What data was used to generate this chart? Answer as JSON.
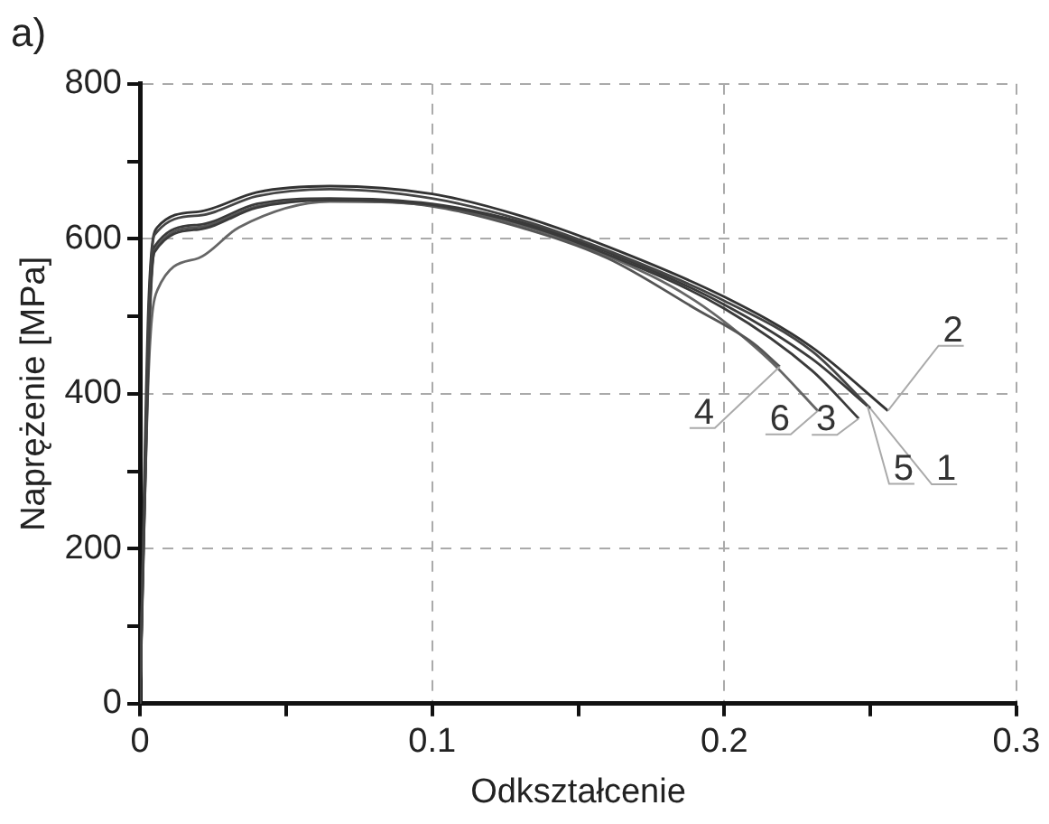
{
  "chart_data": {
    "type": "line",
    "title": "a)",
    "xlabel": "Odkształcenie",
    "ylabel": "Naprężenie [MPa]",
    "xlim": [
      0,
      0.3
    ],
    "ylim": [
      0,
      800
    ],
    "xticks": [
      0,
      {
        "value": 0.05,
        "label": null
      },
      0.1,
      {
        "value": 0.15,
        "label": null
      },
      0.2,
      {
        "value": 0.25,
        "label": null
      },
      0.3
    ],
    "yticks": [
      0,
      {
        "value": 100,
        "label": null
      },
      200,
      {
        "value": 300,
        "label": null
      },
      400,
      {
        "value": 500,
        "label": null
      },
      600,
      {
        "value": 700,
        "label": null
      },
      800
    ],
    "grid": true,
    "legend": false,
    "marker": "none",
    "line_style": "solid",
    "series": [
      {
        "name": "1",
        "color": "#444444",
        "x": [
          0,
          0.003,
          0.005,
          0.02,
          0.04,
          0.065,
          0.1,
          0.13,
          0.16,
          0.2,
          0.23,
          0.25
        ],
        "values": [
          0,
          500,
          605,
          630,
          655,
          664,
          652,
          625,
          585,
          520,
          455,
          381
        ]
      },
      {
        "name": "2",
        "color": "#333333",
        "x": [
          0,
          0.003,
          0.006,
          0.02,
          0.04,
          0.065,
          0.1,
          0.13,
          0.16,
          0.2,
          0.23,
          0.256
        ],
        "values": [
          0,
          520,
          615,
          635,
          660,
          668,
          658,
          630,
          590,
          525,
          460,
          378
        ]
      },
      {
        "name": "3",
        "color": "#3a3a3a",
        "x": [
          0,
          0.003,
          0.005,
          0.02,
          0.04,
          0.065,
          0.1,
          0.13,
          0.16,
          0.2,
          0.23,
          0.246
        ],
        "values": [
          0,
          480,
          583,
          612,
          640,
          650,
          644,
          620,
          580,
          510,
          430,
          368
        ]
      },
      {
        "name": "4",
        "color": "#555555",
        "x": [
          0,
          0.003,
          0.005,
          0.02,
          0.04,
          0.065,
          0.1,
          0.13,
          0.16,
          0.19,
          0.21,
          0.219
        ],
        "values": [
          0,
          460,
          585,
          615,
          642,
          650,
          642,
          615,
          575,
          510,
          465,
          435
        ]
      },
      {
        "name": "5",
        "color": "#3a3a3a",
        "x": [
          0,
          0.003,
          0.005,
          0.02,
          0.04,
          0.065,
          0.1,
          0.13,
          0.16,
          0.2,
          0.23,
          0.249
        ],
        "values": [
          0,
          470,
          590,
          618,
          645,
          652,
          645,
          622,
          583,
          515,
          445,
          384
        ]
      },
      {
        "name": "6",
        "color": "#666666",
        "x": [
          0,
          0.003,
          0.006,
          0.02,
          0.034,
          0.065,
          0.1,
          0.13,
          0.16,
          0.19,
          0.215,
          0.232
        ],
        "values": [
          0,
          430,
          534,
          575,
          615,
          648,
          643,
          618,
          578,
          520,
          445,
          378
        ]
      }
    ]
  }
}
